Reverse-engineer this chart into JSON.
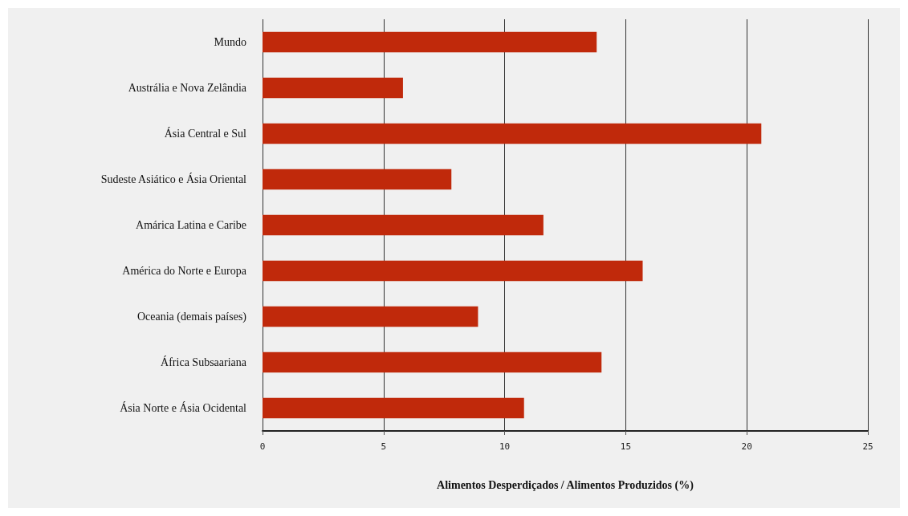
{
  "chart_data": {
    "type": "bar",
    "orientation": "horizontal",
    "xlabel": "Alimentos Desperdiçados / Alimentos Produzidos (%)",
    "categories": [
      "Mundo",
      "Austrália e Nova Zelândia",
      "Ásia Central e Sul",
      "Sudeste Asiático e Ásia Oriental",
      "Amárica Latina e Caribe",
      "América do Norte e Europa",
      "Oceania (demais países)",
      "África Subsaariana",
      "Ásia Norte e Ásia Ocidental"
    ],
    "values": [
      13.8,
      5.8,
      20.6,
      7.8,
      11.6,
      15.7,
      8.9,
      14.0,
      10.8
    ],
    "color": "#c0290b",
    "xlim": [
      0,
      25
    ],
    "xticks": [
      0,
      5,
      10,
      15,
      20,
      25
    ],
    "grid": "x"
  }
}
